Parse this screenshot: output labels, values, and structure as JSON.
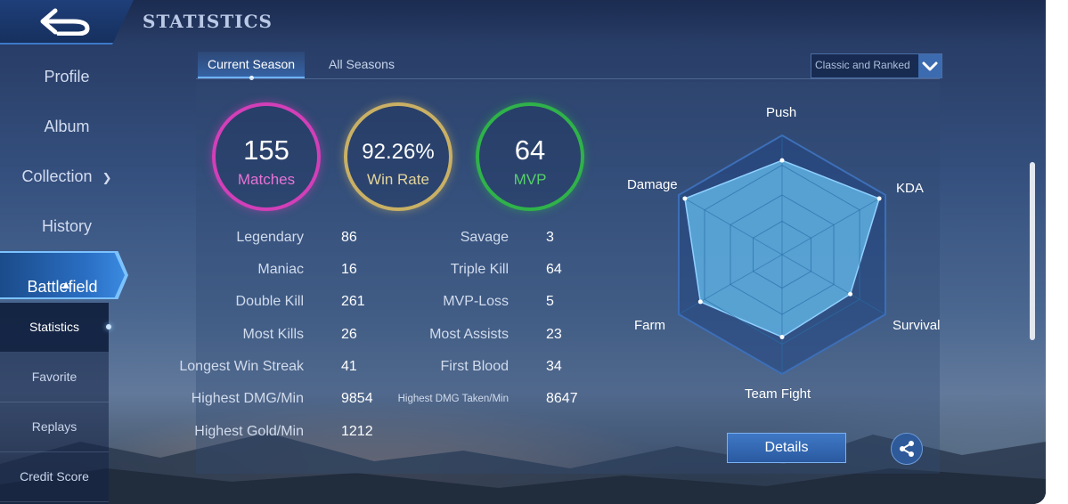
{
  "header": {
    "title": "STATISTICS"
  },
  "sidebar": {
    "items": [
      {
        "label": "Profile"
      },
      {
        "label": "Album"
      },
      {
        "label": "Collection"
      },
      {
        "label": "History"
      },
      {
        "label": "Battlefield"
      }
    ],
    "subitems": [
      {
        "label": "Statistics"
      },
      {
        "label": "Favorite"
      },
      {
        "label": "Replays"
      },
      {
        "label": "Credit Score"
      }
    ]
  },
  "tabs": [
    {
      "label": "Current Season"
    },
    {
      "label": "All Seasons"
    }
  ],
  "mode_select": {
    "value": "Classic and Ranked"
  },
  "summary": [
    {
      "value": "155",
      "label": "Matches",
      "color": "#d23fb8"
    },
    {
      "value": "92.26%",
      "label": "Win Rate",
      "color": "#c9b064"
    },
    {
      "value": "64",
      "label": "MVP",
      "color": "#2fb24a"
    }
  ],
  "stats_left": [
    {
      "label": "Legendary",
      "value": "86"
    },
    {
      "label": "Maniac",
      "value": "16"
    },
    {
      "label": "Double Kill",
      "value": "261"
    },
    {
      "label": "Most Kills",
      "value": "26"
    },
    {
      "label": "Longest Win Streak",
      "value": "41"
    },
    {
      "label": "Highest DMG/Min",
      "value": "9854"
    },
    {
      "label": "Highest Gold/Min",
      "value": "1212"
    }
  ],
  "stats_right": [
    {
      "label": "Savage",
      "value": "3"
    },
    {
      "label": "Triple Kill",
      "value": "64"
    },
    {
      "label": "MVP-Loss",
      "value": "5"
    },
    {
      "label": "Most Assists",
      "value": "23"
    },
    {
      "label": "First Blood",
      "value": "34"
    },
    {
      "label": "Highest DMG Taken/Min",
      "value": "8647"
    }
  ],
  "radar": {
    "axes": [
      "Push",
      "KDA",
      "Survival",
      "Team Fight",
      "Farm",
      "Damage"
    ],
    "values": [
      0.79,
      0.94,
      0.66,
      0.69,
      0.79,
      0.94
    ],
    "fill_color": "#5fb0e0"
  },
  "buttons": {
    "details": "Details"
  },
  "icons": {
    "back": "back-arrow-icon",
    "share": "share-icon",
    "dropdown": "chevron-down-icon"
  }
}
